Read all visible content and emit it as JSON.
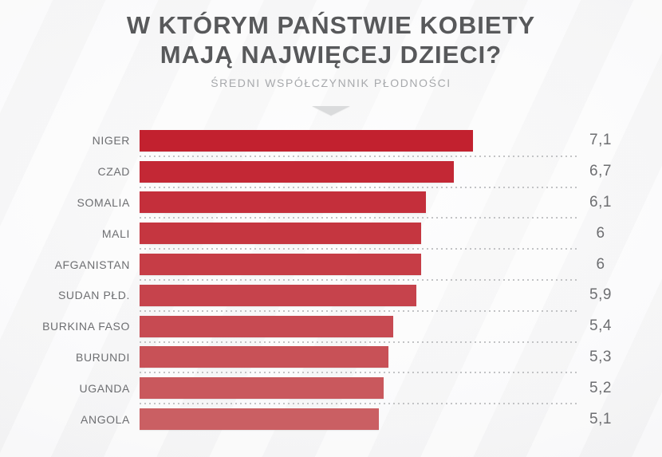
{
  "header": {
    "title_line1": "W KTÓRYM PAŃSTWIE KOBIETY",
    "title_line2": "MAJĄ NAJWIĘCEJ DZIECI?",
    "subtitle": "ŚREDNI WSPÓŁCZYNNIK PŁODNOŚCI"
  },
  "chart_data": {
    "type": "bar",
    "orientation": "horizontal",
    "title": "W KTÓRYM PAŃSTWIE KOBIETY MAJĄ NAJWIĘCEJ DZIECI?",
    "subtitle": "ŚREDNI WSPÓŁCZYNNIK PŁODNOŚCI",
    "categories": [
      "NIGER",
      "CZAD",
      "SOMALIA",
      "MALI",
      "AFGANISTAN",
      "SUDAN PŁD.",
      "BURKINA FASO",
      "BURUNDI",
      "UGANDA",
      "ANGOLA"
    ],
    "values": [
      7.1,
      6.7,
      6.1,
      6,
      6,
      5.9,
      5.4,
      5.3,
      5.2,
      5.1
    ],
    "value_labels": [
      "7,1",
      "6,7",
      "6,1",
      "6",
      "6",
      "5,9",
      "5,4",
      "5,3",
      "5,2",
      "5,1"
    ],
    "xlim": [
      0,
      7.1
    ],
    "decimal_separator": ",",
    "grid": "dotted separators between rows",
    "legend": "none",
    "bar_color_top": "#c2212f",
    "bar_color_bottom": "#ca5f63"
  },
  "colors": {
    "title_text": "#58595b",
    "subtitle_text": "#a7a9ac",
    "label_text": "#6d6e71",
    "value_text": "#6d6e71",
    "separator": "#c2c3c5",
    "arrow": "#dadbdc",
    "background_edge": "#ededee",
    "background_center": "#fdfdfd"
  }
}
